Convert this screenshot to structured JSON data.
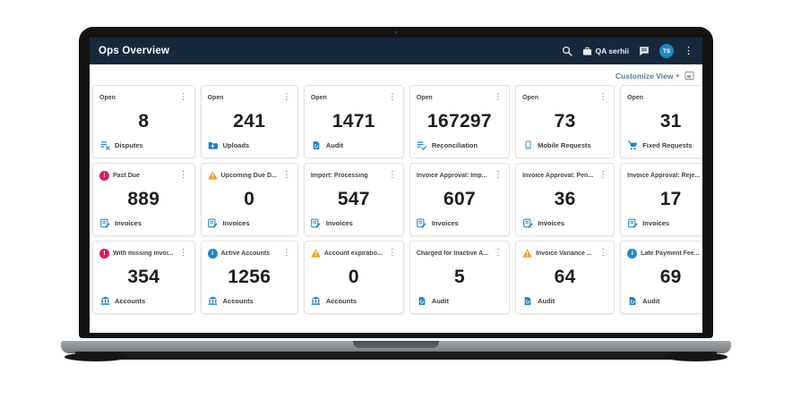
{
  "colors": {
    "header_bg": "#16293c",
    "accent_blue": "#1b7fc2",
    "alert_pink": "#e6155e",
    "warning_orange": "#f59b22",
    "info_blue": "#1e88c9",
    "link": "#54808f"
  },
  "header": {
    "title": "Ops Overview",
    "org_label": "QA serhii",
    "avatar_initials": "TS"
  },
  "toolbar": {
    "customize_view_label": "Customize View",
    "caret": "▾"
  },
  "icons": {
    "alert_glyph": "!",
    "info_glyph": "i"
  },
  "cards": [
    {
      "title": "Open",
      "status": null,
      "value": "8",
      "icon": "disputes",
      "category": "Disputes"
    },
    {
      "title": "Open",
      "status": null,
      "value": "241",
      "icon": "uploads",
      "category": "Uploads"
    },
    {
      "title": "Open",
      "status": null,
      "value": "1471",
      "icon": "audit",
      "category": "Audit"
    },
    {
      "title": "Open",
      "status": null,
      "value": "167297",
      "icon": "reconciliation",
      "category": "Reconciliation"
    },
    {
      "title": "Open",
      "status": null,
      "value": "73",
      "icon": "mobile",
      "category": "Mobile Requests"
    },
    {
      "title": "Open",
      "status": null,
      "value": "31",
      "icon": "cart",
      "category": "Fixed Requests"
    },
    {
      "title": "Past Due",
      "status": "alert",
      "value": "889",
      "icon": "invoices",
      "category": "Invoices"
    },
    {
      "title": "Upcoming Due D...",
      "status": "warning",
      "value": "0",
      "icon": "invoices",
      "category": "Invoices"
    },
    {
      "title": "Import: Processing",
      "status": null,
      "value": "547",
      "icon": "invoices",
      "category": "Invoices"
    },
    {
      "title": "Invoice Approval: Imp...",
      "status": null,
      "value": "607",
      "icon": "invoices",
      "category": "Invoices"
    },
    {
      "title": "Invoice Approval: Pen...",
      "status": null,
      "value": "36",
      "icon": "invoices",
      "category": "Invoices"
    },
    {
      "title": "Invoice Approval: Reje...",
      "status": null,
      "value": "17",
      "icon": "invoices",
      "category": "Invoices"
    },
    {
      "title": "With missing invoi...",
      "status": "alert",
      "value": "354",
      "icon": "accounts",
      "category": "Accounts"
    },
    {
      "title": "Active Accounts",
      "status": "info",
      "value": "1256",
      "icon": "accounts",
      "category": "Accounts"
    },
    {
      "title": "Account expiratio...",
      "status": "warning",
      "value": "0",
      "icon": "accounts",
      "category": "Accounts"
    },
    {
      "title": "Charged for Inactive A...",
      "status": null,
      "value": "5",
      "icon": "audit",
      "category": "Audit"
    },
    {
      "title": "Invoice Variance ...",
      "status": "warning",
      "value": "64",
      "icon": "audit",
      "category": "Audit"
    },
    {
      "title": "Late Payment Fee...",
      "status": "info",
      "value": "69",
      "icon": "audit",
      "category": "Audit"
    }
  ]
}
